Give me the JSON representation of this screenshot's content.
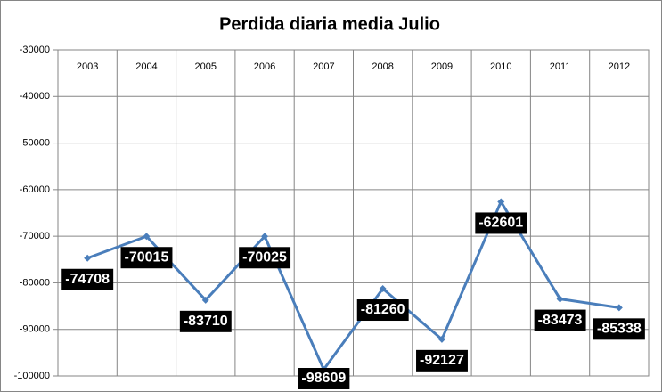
{
  "chart_data": {
    "type": "line",
    "title": "Perdida diaria media Julio",
    "categories": [
      "2003",
      "2004",
      "2005",
      "2006",
      "2007",
      "2008",
      "2009",
      "2010",
      "2011",
      "2012"
    ],
    "series": [
      {
        "name": "Perdida diaria media",
        "color": "#4a7ebb",
        "values": [
          -74708,
          -70015,
          -83710,
          -70025,
          -98609,
          -81260,
          -92127,
          -62601,
          -83473,
          -85338
        ]
      }
    ],
    "ylim": [
      -100000,
      -30000
    ],
    "yticks": [
      -100000,
      -90000,
      -80000,
      -70000,
      -60000,
      -50000,
      -40000,
      -30000
    ],
    "grid": true,
    "data_labels": true
  }
}
